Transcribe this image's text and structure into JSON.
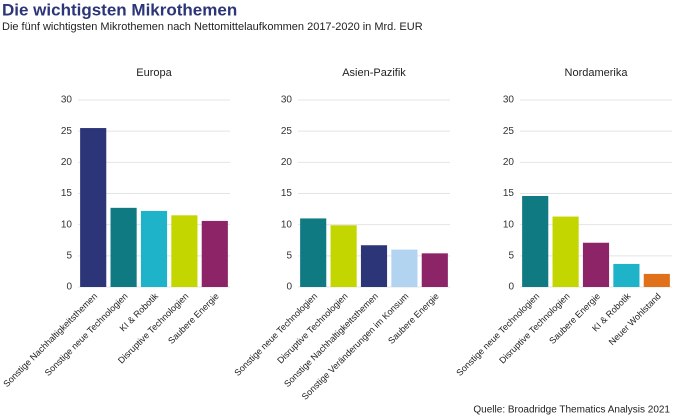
{
  "title": "Die wichtigsten Mikrothemen",
  "subtitle": "Die fünf wichtigsten Mikrothemen nach Nettomittelaufkommen 2017-2020 in Mrd. EUR",
  "source": "Quelle: Broadridge Thematics Analysis 2021",
  "chart_data": [
    {
      "type": "bar",
      "title": "Europa",
      "categories": [
        "Sonstige Nachhaltigkeitsthemen",
        "Sonstige neue Technologien",
        "KI & Robotik",
        "Disruptive Technologien",
        "Saubere Energie"
      ],
      "values": [
        25.5,
        12.7,
        12.2,
        11.5,
        10.6
      ],
      "colors": [
        "#2b3578",
        "#0f7a82",
        "#1fb3c9",
        "#c4d600",
        "#8d2467"
      ],
      "ylim": [
        0,
        30
      ],
      "yticks": [
        0,
        5,
        10,
        15,
        20,
        25,
        30
      ],
      "grid": true
    },
    {
      "type": "bar",
      "title": "Asien-Pazifik",
      "categories": [
        "Sonstige neue Technologien",
        "Disruptive Technologien",
        "Sonstige Nachhaltigkeitsthemen",
        "Sonstige Veränderungen im Konsum",
        "Saubere Energie"
      ],
      "values": [
        11.0,
        9.9,
        6.7,
        6.0,
        5.4
      ],
      "colors": [
        "#0f7a82",
        "#c4d600",
        "#2b3578",
        "#b3d4f0",
        "#8d2467"
      ],
      "ylim": [
        0,
        30
      ],
      "yticks": [
        0,
        5,
        10,
        15,
        20,
        25,
        30
      ],
      "grid": true
    },
    {
      "type": "bar",
      "title": "Nordamerika",
      "categories": [
        "Sonstige neue Technologien",
        "Disruptive Technologien",
        "Saubere Energie",
        "KI & Robotik",
        "Neuer Wohlstand"
      ],
      "values": [
        14.6,
        11.3,
        7.1,
        3.7,
        2.1
      ],
      "colors": [
        "#0f7a82",
        "#c4d600",
        "#8d2467",
        "#1fb3c9",
        "#e0701a"
      ],
      "ylim": [
        0,
        30
      ],
      "yticks": [
        0,
        5,
        10,
        15,
        20,
        25,
        30
      ],
      "grid": true
    }
  ]
}
